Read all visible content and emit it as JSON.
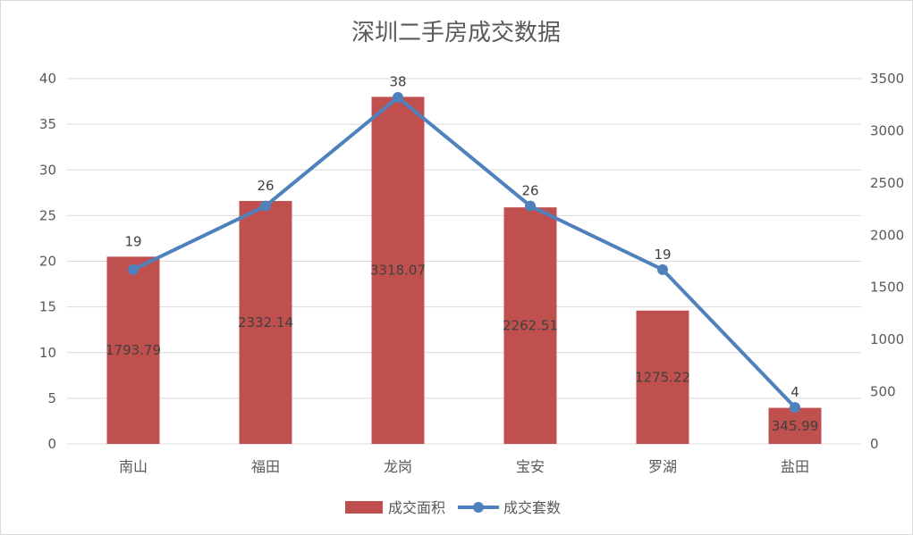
{
  "chart_data": {
    "type": "bar",
    "title": "深圳二手房成交数据",
    "categories": [
      "南山",
      "福田",
      "龙岗",
      "宝安",
      "罗湖",
      "盐田"
    ],
    "y_left": {
      "ticks": [
        "0",
        "5",
        "10",
        "15",
        "20",
        "25",
        "30",
        "35",
        "40"
      ],
      "ylim": [
        0,
        40
      ]
    },
    "y_right": {
      "ticks": [
        "0",
        "500",
        "1000",
        "1500",
        "2000",
        "2500",
        "3000",
        "3500"
      ],
      "ylim": [
        0,
        3500
      ]
    },
    "series": [
      {
        "name": "成交面积",
        "type": "bar",
        "axis": "left",
        "color": "#c0504d",
        "values": [
          20.5,
          26.6,
          38,
          25.9,
          14.6,
          3.95
        ],
        "data_labels": [
          "1793.79",
          "2332.14",
          "3318.07",
          "2262.51",
          "1275.22",
          "345.99"
        ]
      },
      {
        "name": "成交套数",
        "type": "line",
        "axis": "right",
        "color": "#4f81bd",
        "values": [
          1670,
          2280,
          3320,
          2280,
          1670,
          350
        ],
        "data_labels": [
          "19",
          "26",
          "38",
          "26",
          "19",
          "4"
        ]
      }
    ],
    "legend_position": "bottom",
    "grid": true
  }
}
